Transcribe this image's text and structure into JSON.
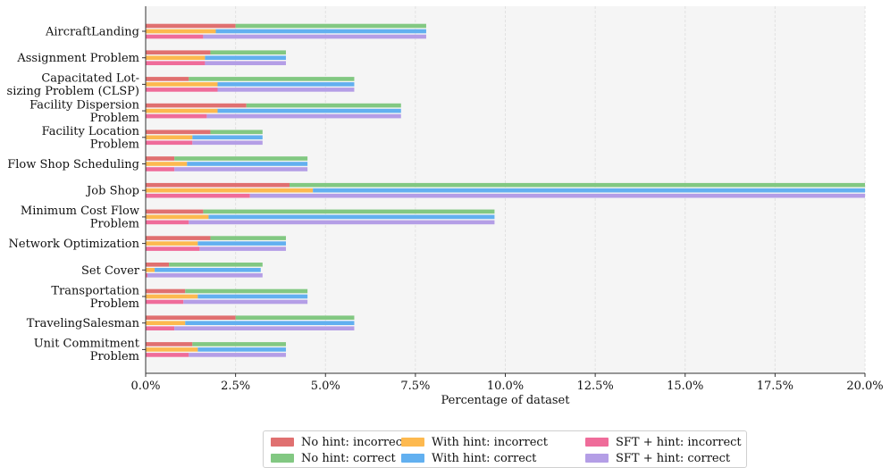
{
  "chart_data": {
    "type": "bar",
    "orientation": "horizontal",
    "stacked": true,
    "title": "",
    "xlabel": "Percentage of dataset",
    "ylabel": "",
    "xlim": [
      0,
      20
    ],
    "x_ticks": [
      "0.0%",
      "2.5%",
      "5.0%",
      "7.5%",
      "10.0%",
      "12.5%",
      "15.0%",
      "17.5%",
      "20.0%"
    ],
    "x_tick_values": [
      0,
      2.5,
      5,
      7.5,
      10,
      12.5,
      15,
      17.5,
      20
    ],
    "grid": true,
    "legend_position": "bottom-center",
    "categories": [
      [
        "AircraftLanding"
      ],
      [
        "Assignment Problem"
      ],
      [
        "Capacitated Lot-",
        "sizing Problem (CLSP)"
      ],
      [
        "Facility Dispersion",
        "Problem"
      ],
      [
        "Facility Location",
        "Problem"
      ],
      [
        "Flow Shop Scheduling"
      ],
      [
        "Job Shop"
      ],
      [
        "Minimum Cost Flow",
        "Problem"
      ],
      [
        "Network Optimization"
      ],
      [
        "Set Cover"
      ],
      [
        "Transportation",
        "Problem"
      ],
      [
        "TravelingSalesman"
      ],
      [
        "Unit Commitment",
        "Problem"
      ]
    ],
    "groups": [
      {
        "name": "No hint",
        "incorrect_label": "No hint: incorrect",
        "correct_label": "No hint: correct",
        "incorrect_color": "#e07070",
        "correct_color": "#82c882",
        "incorrect": [
          2.5,
          1.8,
          1.2,
          2.8,
          1.8,
          0.8,
          4.0,
          1.6,
          1.8,
          0.65,
          1.1,
          2.5,
          1.3
        ],
        "correct": [
          5.3,
          2.1,
          4.6,
          4.3,
          1.45,
          3.7,
          16.0,
          8.1,
          2.1,
          2.6,
          3.4,
          3.3,
          2.6
        ]
      },
      {
        "name": "With hint",
        "incorrect_label": "With hint: incorrect",
        "correct_label": "With hint: correct",
        "incorrect_color": "#fdb94f",
        "correct_color": "#62b0f0",
        "incorrect": [
          1.95,
          1.65,
          2.0,
          2.0,
          1.3,
          1.15,
          4.65,
          1.75,
          1.45,
          0.25,
          1.45,
          1.1,
          1.45
        ],
        "correct": [
          5.85,
          2.25,
          3.8,
          5.1,
          1.95,
          3.35,
          15.35,
          7.95,
          2.45,
          2.95,
          3.05,
          4.7,
          2.45
        ]
      },
      {
        "name": "SFT + hint",
        "incorrect_label": "SFT + hint: incorrect",
        "correct_label": "SFT + hint: correct",
        "incorrect_color": "#ef6c9a",
        "correct_color": "#b49ee6",
        "incorrect": [
          1.6,
          1.65,
          2.0,
          1.7,
          1.3,
          0.8,
          2.9,
          1.2,
          1.5,
          0.05,
          1.05,
          0.8,
          1.2
        ],
        "correct": [
          6.2,
          2.25,
          3.8,
          5.4,
          1.95,
          3.7,
          17.1,
          8.5,
          2.4,
          3.2,
          3.45,
          5.0,
          2.7
        ]
      }
    ]
  }
}
